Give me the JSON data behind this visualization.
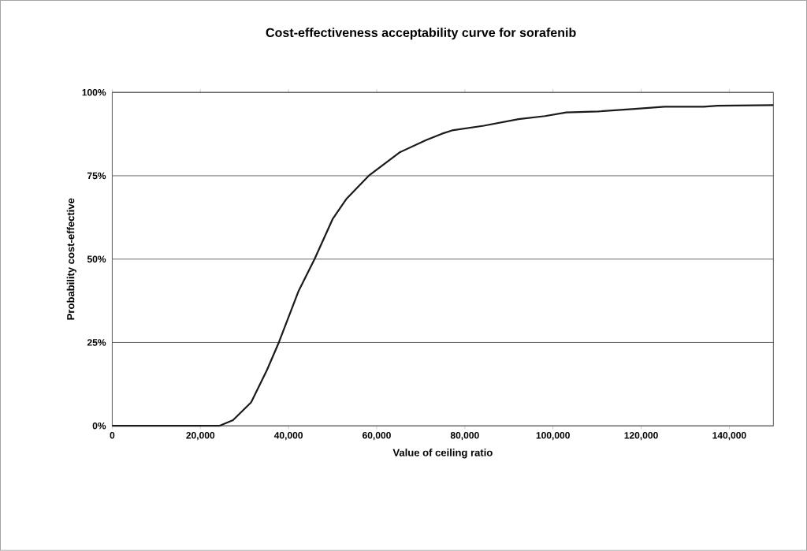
{
  "chart_data": {
    "type": "line",
    "title": "Cost-effectiveness acceptability curve for sorafenib",
    "xlabel": "Value of ceiling ratio",
    "ylabel": "Probability cost-effective",
    "x": [
      0,
      24300,
      27400,
      31500,
      35100,
      37800,
      42300,
      45900,
      50000,
      53100,
      58200,
      65200,
      71200,
      74800,
      77100,
      84300,
      92200,
      98200,
      103000,
      110300,
      118000,
      125300,
      134200,
      137300,
      150000
    ],
    "series": [
      {
        "color": "#1a1a1a",
        "values": [
          0,
          0,
          1.7,
          7,
          16.7,
          25,
          40.5,
          50,
          62,
          68,
          75,
          82,
          85.7,
          87.6,
          88.6,
          90,
          92,
          92.9,
          94,
          94.3,
          95,
          95.7,
          95.7,
          96,
          96.2
        ]
      }
    ],
    "xlim": [
      0,
      150000
    ],
    "xticks": [
      0,
      {
        "value": 20000,
        "label": "20,000"
      },
      {
        "value": 40000,
        "label": "40,000"
      },
      {
        "value": 60000,
        "label": "60,000"
      },
      {
        "value": 80000,
        "label": "80,000"
      },
      {
        "value": 100000,
        "label": "100,000"
      },
      {
        "value": 120000,
        "label": "120,000"
      },
      {
        "value": 140000,
        "label": "140,000"
      }
    ],
    "ylim": [
      0,
      100
    ],
    "yticks": [
      {
        "value": 0,
        "label": "0%"
      },
      {
        "value": 25,
        "label": "25%"
      },
      {
        "value": 50,
        "label": "50%"
      },
      {
        "value": 75,
        "label": "75%"
      },
      {
        "value": 100,
        "label": "100%"
      }
    ],
    "grid": "y",
    "marker": "none",
    "line_style": "solid"
  }
}
